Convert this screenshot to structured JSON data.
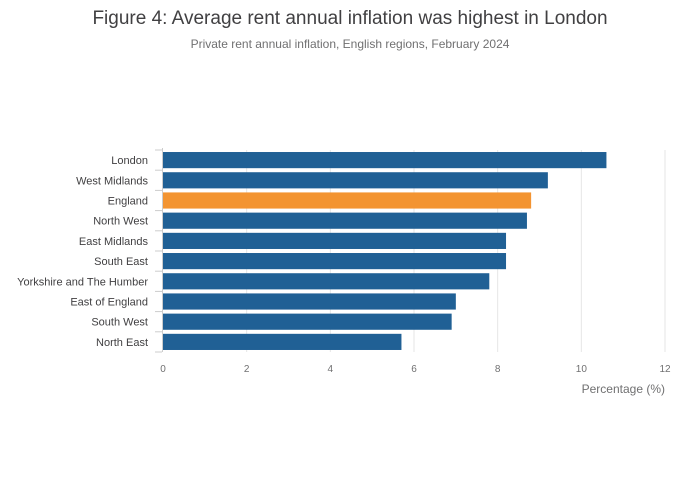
{
  "chart_data": {
    "type": "bar",
    "orientation": "horizontal",
    "title": "Figure 4: Average rent annual inflation was highest in London",
    "subtitle": "Private rent annual inflation, English regions, February 2024",
    "xlabel": "Percentage (%)",
    "ylabel": "",
    "xlim": [
      0,
      12
    ],
    "xticks": [
      0,
      2,
      4,
      6,
      8,
      10,
      12
    ],
    "grid": true,
    "categories": [
      "London",
      "West Midlands",
      "England",
      "North West",
      "East Midlands",
      "South East",
      "Yorkshire and The Humber",
      "East of England",
      "South West",
      "North East"
    ],
    "values": [
      10.6,
      9.2,
      8.8,
      8.7,
      8.2,
      8.2,
      7.8,
      7.0,
      6.9,
      5.7
    ],
    "colors": {
      "default": "#206095",
      "highlight": "#f39431",
      "highlight_category": "England"
    }
  }
}
